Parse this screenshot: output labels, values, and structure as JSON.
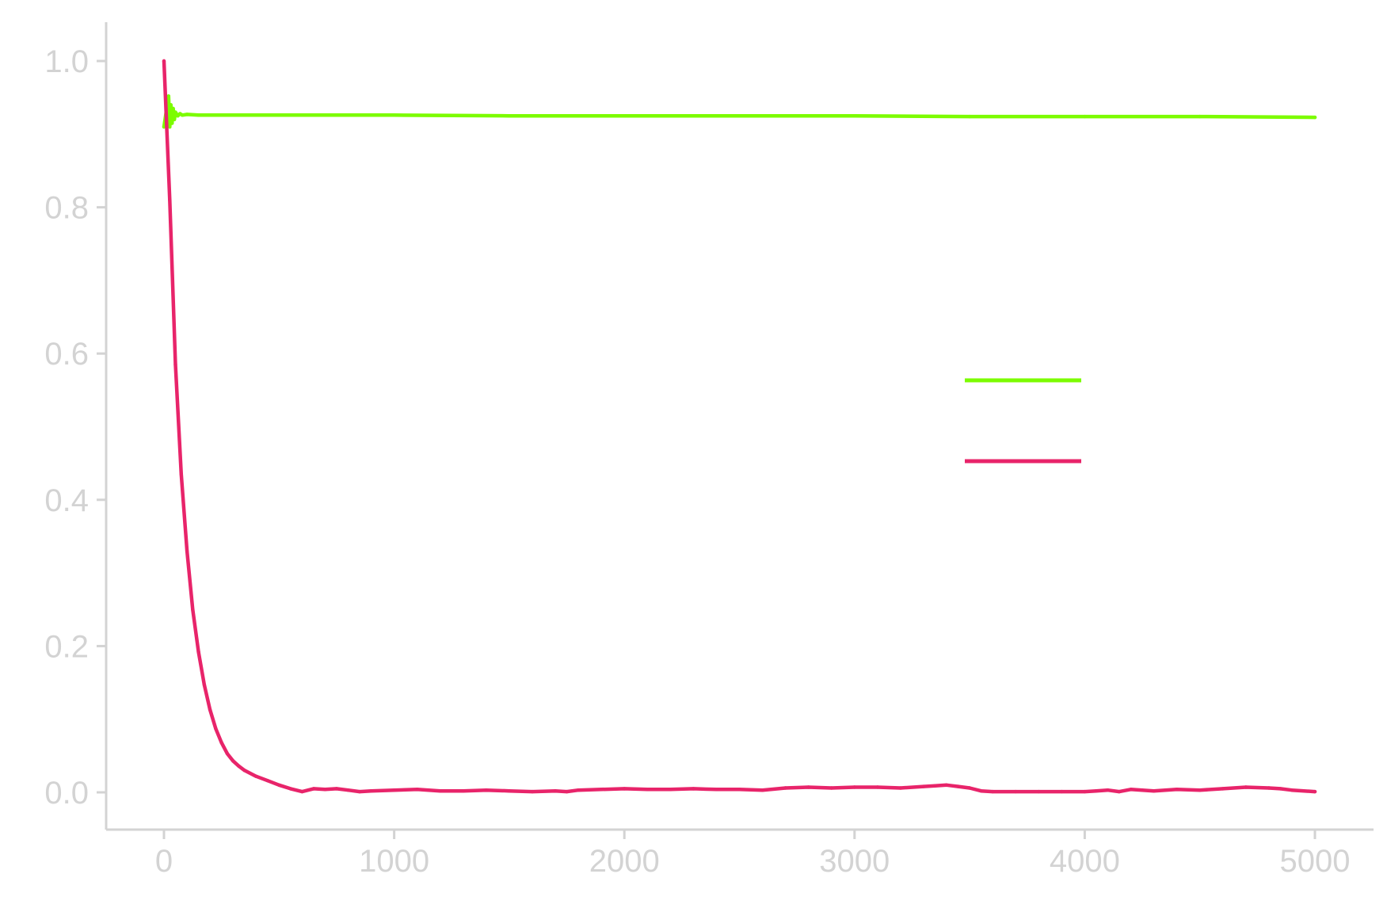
{
  "chart_data": {
    "type": "line",
    "xlim": [
      -250,
      5250
    ],
    "ylim": [
      -0.05,
      1.05
    ],
    "x_ticks": [
      0,
      1000,
      2000,
      3000,
      4000,
      5000
    ],
    "x_tick_labels": [
      "0",
      "1000",
      "2000",
      "3000",
      "4000",
      "5000"
    ],
    "y_ticks": [
      0.0,
      0.2,
      0.4,
      0.6,
      0.8,
      1.0
    ],
    "y_tick_labels": [
      "0.0",
      "0.2",
      "0.4",
      "0.6",
      "0.8",
      "1.0"
    ],
    "grid": false,
    "legend": {
      "position": "right",
      "labels_visible": false
    },
    "series": [
      {
        "color": "#7cfc00",
        "x": [
          0,
          20,
          25,
          30,
          35,
          40,
          45,
          50,
          60,
          70,
          80,
          100,
          150,
          200,
          500,
          1000,
          1500,
          2000,
          2500,
          3000,
          3500,
          4000,
          4500,
          5000
        ],
        "y": [
          0.91,
          0.952,
          0.91,
          0.94,
          0.915,
          0.935,
          0.92,
          0.93,
          0.925,
          0.928,
          0.926,
          0.927,
          0.926,
          0.926,
          0.926,
          0.926,
          0.925,
          0.925,
          0.925,
          0.925,
          0.924,
          0.924,
          0.924,
          0.923
        ]
      },
      {
        "color": "#e8246a",
        "x": [
          0,
          25,
          50,
          75,
          100,
          125,
          150,
          175,
          200,
          225,
          250,
          275,
          300,
          325,
          350,
          400,
          450,
          500,
          550,
          600,
          650,
          700,
          750,
          800,
          850,
          900,
          1000,
          1100,
          1150,
          1200,
          1300,
          1400,
          1500,
          1600,
          1700,
          1750,
          1800,
          1900,
          2000,
          2100,
          2200,
          2300,
          2400,
          2500,
          2600,
          2700,
          2800,
          2900,
          3000,
          3100,
          3200,
          3300,
          3350,
          3400,
          3450,
          3500,
          3550,
          3600,
          3700,
          3800,
          3900,
          4000,
          4050,
          4100,
          4150,
          4200,
          4250,
          4300,
          4400,
          4500,
          4600,
          4700,
          4800,
          4850,
          4900,
          5000
        ],
        "y": [
          1.0,
          0.81,
          0.585,
          0.435,
          0.33,
          0.25,
          0.192,
          0.147,
          0.113,
          0.087,
          0.068,
          0.053,
          0.043,
          0.036,
          0.03,
          0.022,
          0.016,
          0.01,
          0.005,
          0.001,
          0.005,
          0.004,
          0.005,
          0.003,
          0.001,
          0.002,
          0.003,
          0.004,
          0.003,
          0.002,
          0.002,
          0.003,
          0.002,
          0.001,
          0.002,
          0.001,
          0.003,
          0.004,
          0.005,
          0.004,
          0.004,
          0.005,
          0.004,
          0.004,
          0.003,
          0.006,
          0.007,
          0.006,
          0.007,
          0.007,
          0.006,
          0.008,
          0.009,
          0.01,
          0.008,
          0.006,
          0.002,
          0.001,
          0.001,
          0.001,
          0.001,
          0.001,
          0.002,
          0.003,
          0.001,
          0.004,
          0.003,
          0.002,
          0.004,
          0.003,
          0.005,
          0.007,
          0.006,
          0.005,
          0.003,
          0.001
        ]
      }
    ]
  }
}
